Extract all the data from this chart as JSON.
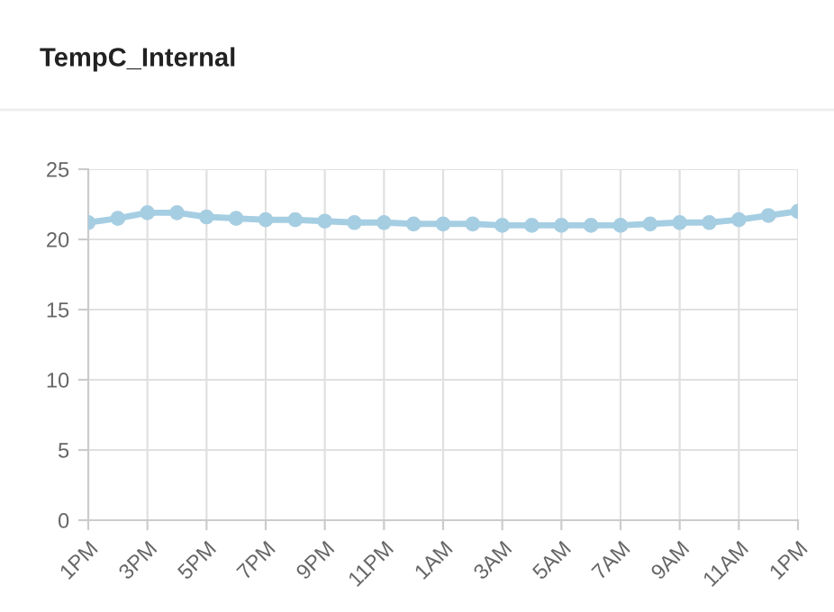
{
  "chart_data": {
    "type": "line",
    "title": "TempC_Internal",
    "categories": [
      "1PM",
      null,
      "3PM",
      null,
      "5PM",
      null,
      "7PM",
      null,
      "9PM",
      null,
      "11PM",
      null,
      "1AM",
      null,
      "3AM",
      null,
      "5AM",
      null,
      "7AM",
      null,
      "9AM",
      null,
      "11AM",
      null,
      "1PM"
    ],
    "series": [
      {
        "color": "#a6cee3",
        "values": [
          21.2,
          21.5,
          21.9,
          21.9,
          21.6,
          21.5,
          21.4,
          21.4,
          21.3,
          21.2,
          21.2,
          21.1,
          21.1,
          21.1,
          21.0,
          21.0,
          21.0,
          21.0,
          21.0,
          21.1,
          21.2,
          21.2,
          21.4,
          21.7,
          22.0
        ]
      }
    ],
    "ylim": [
      0,
      25
    ],
    "yticks": [
      0,
      5,
      10,
      15,
      20,
      25
    ],
    "grid": true,
    "marker": "circle",
    "line_style": "solid"
  }
}
